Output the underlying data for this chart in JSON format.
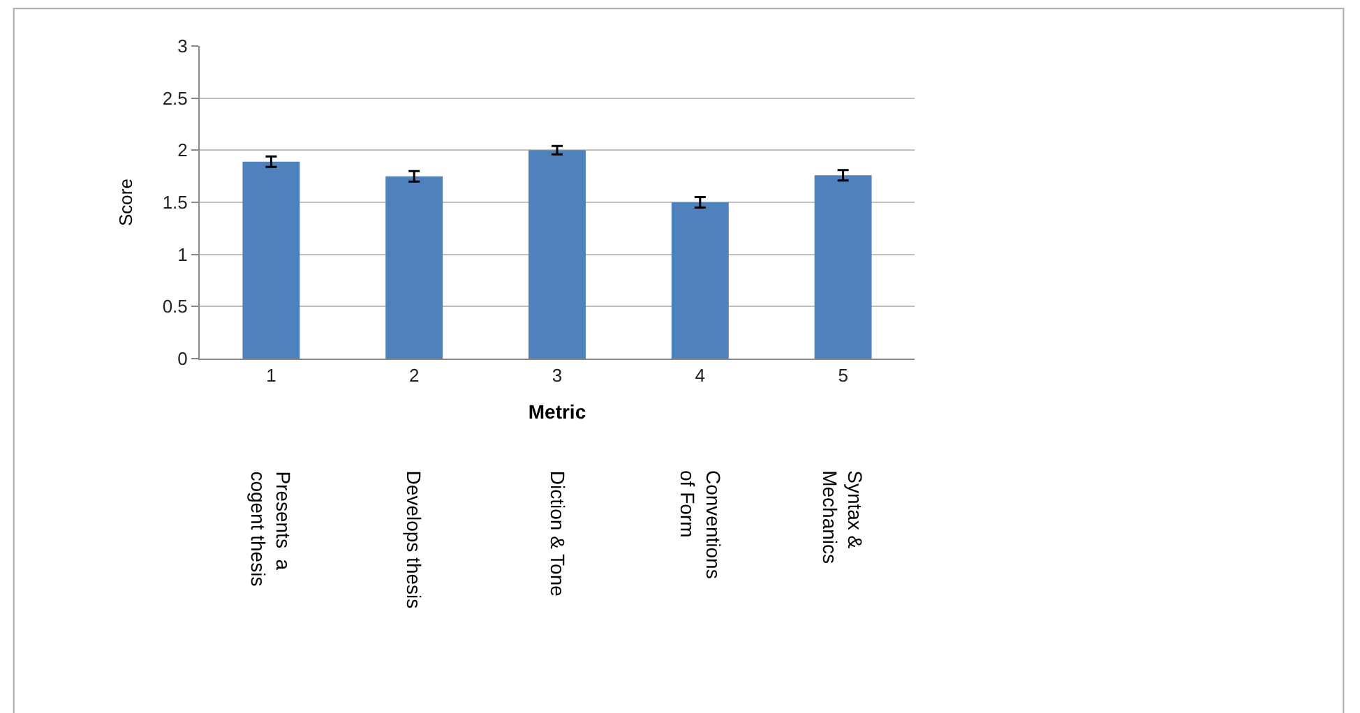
{
  "chart_data": {
    "type": "bar",
    "xlabel": "Metric",
    "ylabel": "Score",
    "categories": [
      "1",
      "2",
      "3",
      "4",
      "5"
    ],
    "values": [
      1.89,
      1.75,
      2.0,
      1.5,
      1.76
    ],
    "errors": [
      0.05,
      0.05,
      0.04,
      0.05,
      0.05
    ],
    "color": "#4f81bd",
    "ylim": [
      0,
      3
    ],
    "yticks": [
      0,
      0.5,
      1,
      1.5,
      2,
      2.5,
      3
    ],
    "grid": "y",
    "annotations": [
      "Presents  a\ncogent thesis",
      "Develops thesis",
      "Diction & Tone",
      "Conventions\nof Form",
      "Syntax &\nMechanics"
    ]
  }
}
